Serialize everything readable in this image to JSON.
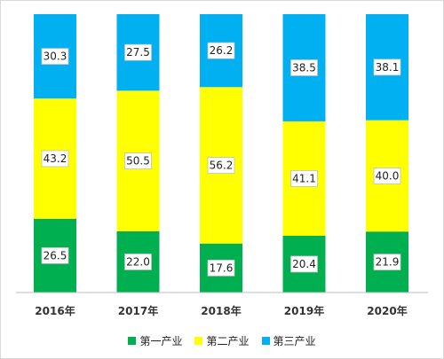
{
  "chart_data": {
    "type": "bar",
    "stacked": true,
    "percent_stacked": true,
    "categories": [
      "2016年",
      "2017年",
      "2018年",
      "2019年",
      "2020年"
    ],
    "series": [
      {
        "name": "第一产业",
        "color": "#00b050",
        "values": [
          26.5,
          22.0,
          17.6,
          20.4,
          21.9
        ],
        "labels": [
          "26.5",
          "22.0",
          "17.6",
          "20.4",
          "21.9"
        ]
      },
      {
        "name": "第二产业",
        "color": "#ffff00",
        "values": [
          43.2,
          50.5,
          56.2,
          41.1,
          40.0
        ],
        "labels": [
          "43.2",
          "50.5",
          "56.2",
          "41.1",
          "40.0"
        ]
      },
      {
        "name": "第三产业",
        "color": "#00b0f0",
        "values": [
          30.3,
          27.5,
          26.2,
          38.5,
          38.1
        ],
        "labels": [
          "30.3",
          "27.5",
          "26.2",
          "38.5",
          "38.1"
        ]
      }
    ],
    "ylim": [
      0,
      100
    ],
    "grid": false,
    "legend_position": "bottom"
  }
}
